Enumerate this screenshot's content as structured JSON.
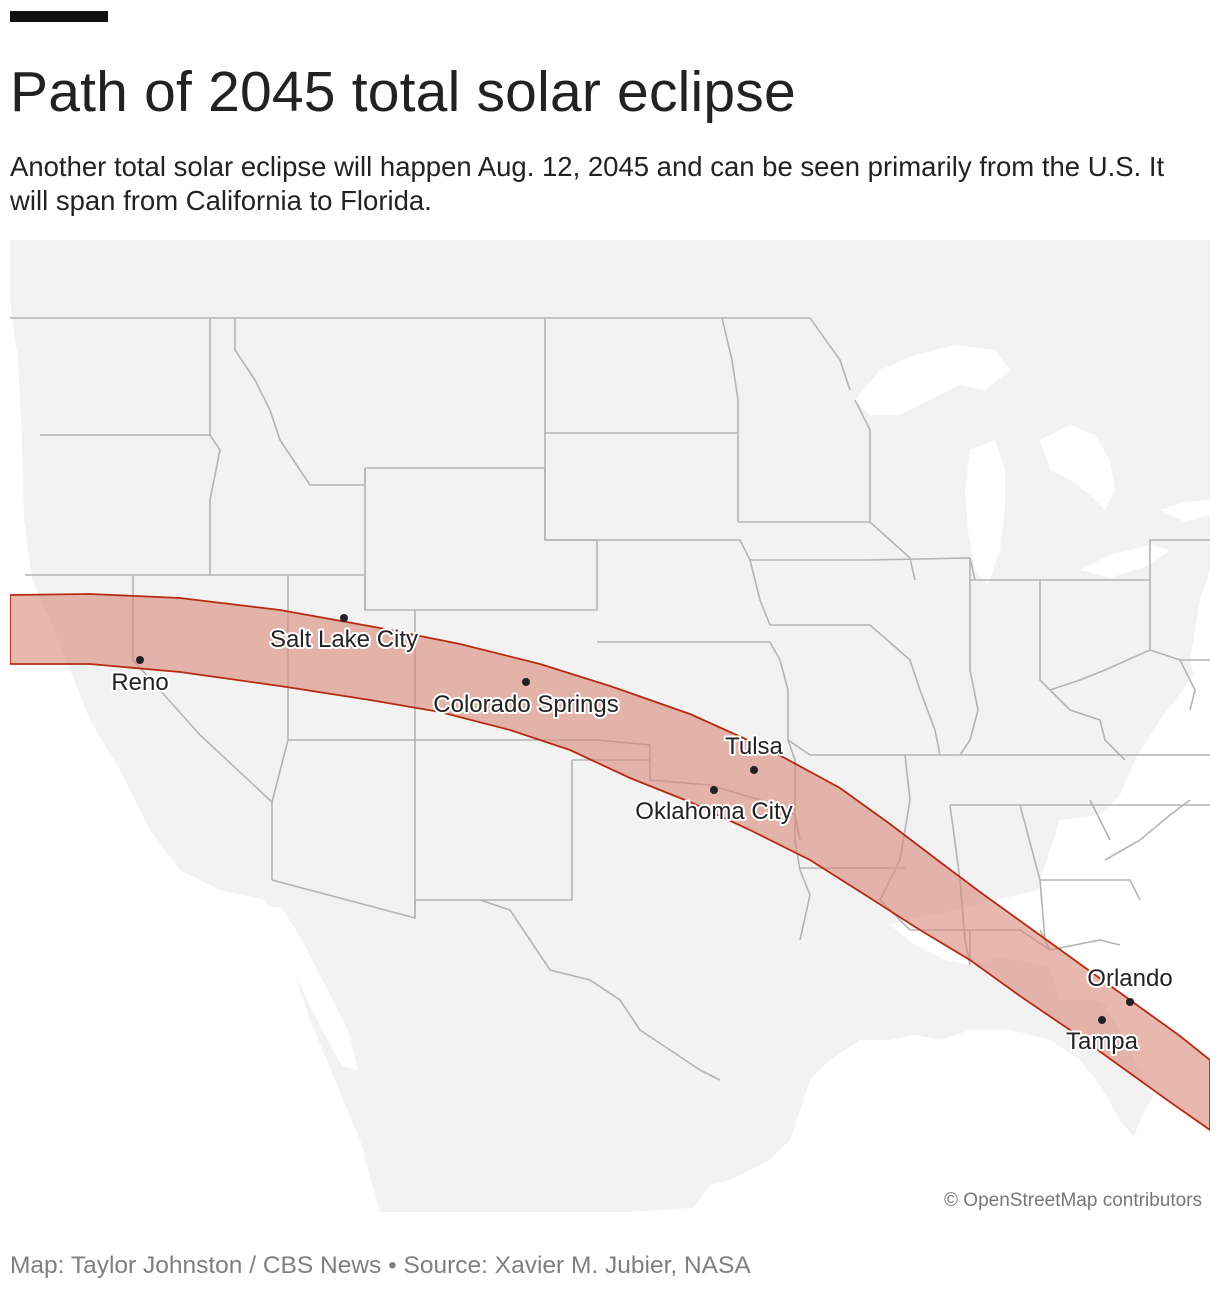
{
  "header": {
    "title": "Path of 2045 total solar eclipse",
    "subtitle": "Another total solar eclipse will happen Aug. 12, 2045 and can be seen primarily from the U.S. It will span from California to Florida."
  },
  "map": {
    "attribution": "© OpenStreetMap contributors",
    "cities": [
      {
        "name": "Reno",
        "label": "Reno"
      },
      {
        "name": "Salt Lake City",
        "label": "Salt Lake City"
      },
      {
        "name": "Colorado Springs",
        "label": "Colorado Springs"
      },
      {
        "name": "Tulsa",
        "label": "Tulsa"
      },
      {
        "name": "Oklahoma City",
        "label": "Oklahoma City"
      },
      {
        "name": "Orlando",
        "label": "Orlando"
      },
      {
        "name": "Tampa",
        "label": "Tampa"
      }
    ],
    "colors": {
      "land": "#f2f2f2",
      "water": "#ffffff",
      "state_border": "#b4b4b4",
      "eclipse_path_fill": "#d9897a",
      "eclipse_path_stroke": "#b52a10",
      "city_dot": "#222222"
    }
  },
  "footer": {
    "credit": "Map: Taylor Johnston / CBS News • Source: Xavier M. Jubier, NASA"
  }
}
